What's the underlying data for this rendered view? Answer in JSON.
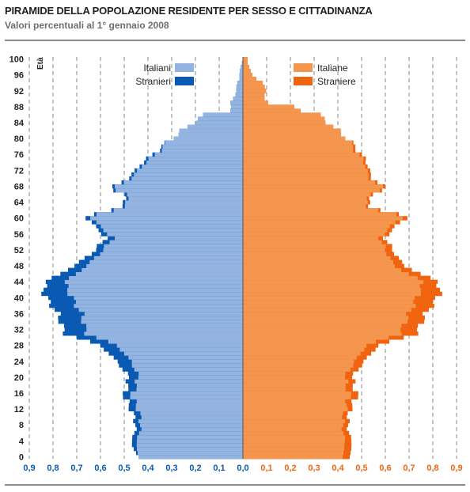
{
  "title": "PIRAMIDE DELLA POPOLAZIONE RESIDENTE PER SESSO E CITTADINANZA",
  "subtitle": "Valori percentuali  al 1° gennaio 2008",
  "chart_data": {
    "type": "population-pyramid",
    "ylabel": "Età",
    "age_ticks": [
      "100",
      "96",
      "92",
      "88",
      "84",
      "80",
      "76",
      "72",
      "68",
      "64",
      "60",
      "56",
      "52",
      "48",
      "44",
      "40",
      "36",
      "32",
      "28",
      "24",
      "20",
      "16",
      "12",
      "8",
      "4",
      "0"
    ],
    "x_ticks_left": [
      "0,9",
      "0,8",
      "0,7",
      "0,6",
      "0,5",
      "0,4",
      "0,3",
      "0,2",
      "0,1",
      "0,0"
    ],
    "x_ticks_right": [
      "0,1",
      "0,2",
      "0,3",
      "0,4",
      "0,5",
      "0,6",
      "0,7",
      "0,8",
      "0,9"
    ],
    "xlim": [
      0,
      0.9
    ],
    "grid": "vertical dashed",
    "legend": {
      "males": [
        {
          "label": "Italiani",
          "color": "#93b3e0"
        },
        {
          "label": "Stranieri",
          "color": "#0a5ab4"
        }
      ],
      "females": [
        {
          "label": "Italiane",
          "color": "#f5964f"
        },
        {
          "label": "Straniere",
          "color": "#f06410"
        }
      ]
    },
    "male_total_anchors": [
      [
        0,
        0.44
      ],
      [
        3,
        0.47
      ],
      [
        8,
        0.45
      ],
      [
        12,
        0.47
      ],
      [
        15,
        0.5
      ],
      [
        20,
        0.48
      ],
      [
        24,
        0.53
      ],
      [
        28,
        0.6
      ],
      [
        31,
        0.75
      ],
      [
        36,
        0.78
      ],
      [
        41,
        0.84
      ],
      [
        44,
        0.83
      ],
      [
        48,
        0.71
      ],
      [
        52,
        0.62
      ],
      [
        55,
        0.58
      ],
      [
        57,
        0.6
      ],
      [
        58,
        0.63
      ],
      [
        60,
        0.65
      ],
      [
        61,
        0.63
      ],
      [
        63,
        0.5
      ],
      [
        66,
        0.5
      ],
      [
        67,
        0.54
      ],
      [
        68,
        0.55
      ],
      [
        70,
        0.48
      ],
      [
        73,
        0.44
      ],
      [
        76,
        0.38
      ],
      [
        80,
        0.3
      ],
      [
        84,
        0.21
      ],
      [
        86,
        0.16
      ],
      [
        87,
        0.06
      ],
      [
        90,
        0.04
      ],
      [
        94,
        0.02
      ],
      [
        98,
        0.01
      ],
      [
        100,
        0.0
      ]
    ],
    "male_italian_anchors": [
      [
        0,
        0.44
      ],
      [
        3,
        0.45
      ],
      [
        8,
        0.43
      ],
      [
        12,
        0.44
      ],
      [
        15,
        0.47
      ],
      [
        20,
        0.44
      ],
      [
        24,
        0.47
      ],
      [
        28,
        0.53
      ],
      [
        31,
        0.66
      ],
      [
        36,
        0.68
      ],
      [
        41,
        0.73
      ],
      [
        44,
        0.75
      ],
      [
        48,
        0.66
      ],
      [
        52,
        0.59
      ],
      [
        55,
        0.55
      ],
      [
        57,
        0.58
      ],
      [
        58,
        0.61
      ],
      [
        60,
        0.63
      ],
      [
        61,
        0.62
      ],
      [
        63,
        0.49
      ],
      [
        66,
        0.49
      ],
      [
        67,
        0.53
      ],
      [
        68,
        0.54
      ],
      [
        70,
        0.47
      ],
      [
        73,
        0.43
      ],
      [
        76,
        0.37
      ],
      [
        80,
        0.3
      ],
      [
        84,
        0.21
      ],
      [
        86,
        0.16
      ],
      [
        87,
        0.06
      ],
      [
        90,
        0.04
      ],
      [
        94,
        0.02
      ],
      [
        98,
        0.01
      ],
      [
        100,
        0.0
      ]
    ],
    "female_total_anchors": [
      [
        0,
        0.45
      ],
      [
        3,
        0.46
      ],
      [
        8,
        0.44
      ],
      [
        12,
        0.45
      ],
      [
        15,
        0.48
      ],
      [
        20,
        0.46
      ],
      [
        24,
        0.51
      ],
      [
        28,
        0.57
      ],
      [
        31,
        0.73
      ],
      [
        36,
        0.77
      ],
      [
        41,
        0.83
      ],
      [
        44,
        0.82
      ],
      [
        48,
        0.68
      ],
      [
        52,
        0.63
      ],
      [
        55,
        0.6
      ],
      [
        57,
        0.62
      ],
      [
        58,
        0.65
      ],
      [
        60,
        0.68
      ],
      [
        61,
        0.66
      ],
      [
        63,
        0.52
      ],
      [
        66,
        0.55
      ],
      [
        67,
        0.58
      ],
      [
        68,
        0.6
      ],
      [
        70,
        0.54
      ],
      [
        73,
        0.53
      ],
      [
        76,
        0.5
      ],
      [
        78,
        0.47
      ],
      [
        80,
        0.44
      ],
      [
        84,
        0.36
      ],
      [
        86,
        0.32
      ],
      [
        87,
        0.25
      ],
      [
        88,
        0.22
      ],
      [
        89,
        0.1
      ],
      [
        90,
        0.09
      ],
      [
        92,
        0.1
      ],
      [
        94,
        0.08
      ],
      [
        96,
        0.04
      ],
      [
        99,
        0.02
      ],
      [
        100,
        0.02
      ]
    ],
    "female_italian_anchors": [
      [
        0,
        0.42
      ],
      [
        3,
        0.43
      ],
      [
        8,
        0.42
      ],
      [
        12,
        0.43
      ],
      [
        15,
        0.45
      ],
      [
        20,
        0.43
      ],
      [
        24,
        0.47
      ],
      [
        28,
        0.52
      ],
      [
        31,
        0.66
      ],
      [
        36,
        0.7
      ],
      [
        41,
        0.74
      ],
      [
        44,
        0.76
      ],
      [
        48,
        0.64
      ],
      [
        52,
        0.6
      ],
      [
        55,
        0.58
      ],
      [
        57,
        0.6
      ],
      [
        58,
        0.63
      ],
      [
        60,
        0.66
      ],
      [
        61,
        0.65
      ],
      [
        63,
        0.51
      ],
      [
        66,
        0.54
      ],
      [
        67,
        0.57
      ],
      [
        68,
        0.59
      ],
      [
        70,
        0.53
      ],
      [
        73,
        0.52
      ],
      [
        76,
        0.49
      ],
      [
        78,
        0.46
      ],
      [
        80,
        0.44
      ],
      [
        84,
        0.36
      ],
      [
        86,
        0.32
      ],
      [
        87,
        0.25
      ],
      [
        88,
        0.22
      ],
      [
        89,
        0.1
      ],
      [
        90,
        0.09
      ],
      [
        92,
        0.1
      ],
      [
        94,
        0.08
      ],
      [
        96,
        0.04
      ],
      [
        99,
        0.02
      ],
      [
        100,
        0.02
      ]
    ]
  }
}
